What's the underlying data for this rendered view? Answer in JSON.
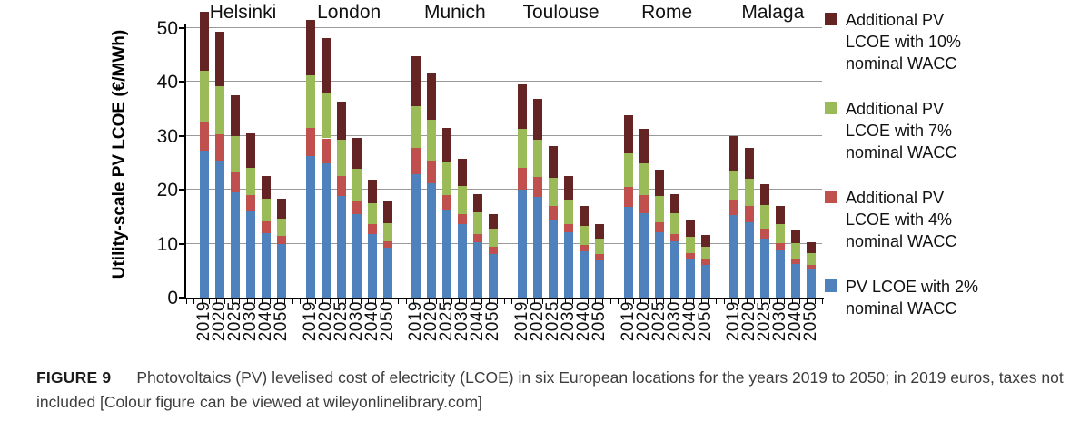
{
  "figure": {
    "label": "FIGURE 9",
    "caption": "Photovoltaics (PV) levelised cost of electricity (LCOE) in six European locations for the years 2019 to 2050; in 2019 euros, taxes not included [Colour figure can be viewed at wileyonlinelibrary.com]"
  },
  "chart_data": {
    "type": "bar",
    "stacked": true,
    "title": "",
    "xlabel": "",
    "ylabel": "Utility-scale PV LCOE (€/MWh)",
    "ylim": [
      0,
      55
    ],
    "yticks": [
      0,
      10,
      20,
      30,
      40,
      50
    ],
    "grid": true,
    "legend_position": "right",
    "groups": [
      "Helsinki",
      "London",
      "Munich",
      "Toulouse",
      "Rome",
      "Malaga"
    ],
    "years": [
      "2019",
      "2020",
      "2025",
      "2030",
      "2040",
      "2050"
    ],
    "series": [
      {
        "name": "PV LCOE with 2% nominal WACC",
        "color": "#4F81BD",
        "values": [
          [
            27.2,
            25.3,
            19.5,
            16.0,
            12.0,
            9.9
          ],
          [
            26.2,
            24.8,
            18.9,
            15.5,
            11.8,
            9.2
          ],
          [
            22.8,
            21.2,
            16.3,
            13.7,
            10.3,
            8.1
          ],
          [
            20.0,
            18.6,
            14.3,
            12.1,
            8.6,
            6.9
          ],
          [
            16.8,
            15.7,
            12.1,
            10.4,
            7.3,
            6.0
          ],
          [
            15.3,
            14.0,
            11.0,
            8.8,
            6.3,
            5.2
          ]
        ]
      },
      {
        "name": "Additional PV LCOE with 4% nominal WACC",
        "color": "#C0504D",
        "values": [
          [
            5.3,
            4.9,
            3.7,
            3.0,
            2.1,
            1.5
          ],
          [
            5.2,
            4.7,
            3.6,
            2.5,
            1.9,
            1.3
          ],
          [
            4.9,
            4.2,
            2.7,
            1.8,
            1.4,
            1.3
          ],
          [
            4.0,
            3.8,
            2.7,
            1.6,
            1.2,
            1.1
          ],
          [
            3.7,
            3.3,
            1.9,
            1.4,
            1.0,
            1.0
          ],
          [
            2.9,
            3.0,
            1.8,
            1.3,
            1.0,
            0.8
          ]
        ]
      },
      {
        "name": "Additional PV LCOE with 7% nominal WACC",
        "color": "#9BBB59",
        "values": [
          [
            9.5,
            9.0,
            6.8,
            5.0,
            4.2,
            3.2
          ],
          [
            9.7,
            8.5,
            6.7,
            5.8,
            3.8,
            3.3
          ],
          [
            7.8,
            7.6,
            6.2,
            5.2,
            4.1,
            3.4
          ],
          [
            7.3,
            6.9,
            5.2,
            4.5,
            3.4,
            3.0
          ],
          [
            6.3,
            5.8,
            4.9,
            3.9,
            3.0,
            2.4
          ],
          [
            5.3,
            5.0,
            4.3,
            3.6,
            2.8,
            2.2
          ]
        ]
      },
      {
        "name": "Additional PV LCOE with 10% nominal WACC",
        "color": "#632423",
        "values": [
          [
            11.0,
            10.1,
            7.5,
            6.5,
            4.3,
            3.8
          ],
          [
            10.4,
            10.0,
            7.1,
            5.7,
            4.4,
            4.0
          ],
          [
            9.2,
            8.7,
            6.3,
            5.1,
            3.4,
            2.6
          ],
          [
            8.2,
            7.5,
            5.8,
            4.3,
            3.8,
            2.7
          ],
          [
            7.0,
            6.5,
            4.8,
            3.5,
            3.0,
            2.2
          ],
          [
            6.4,
            5.8,
            3.9,
            3.3,
            2.4,
            2.0
          ]
        ]
      }
    ],
    "legend": [
      {
        "color": "#632423",
        "lines": [
          "Additional PV",
          "LCOE with 10%",
          "nominal WACC"
        ]
      },
      {
        "color": "#9BBB59",
        "lines": [
          "Additional PV",
          "LCOE with 7%",
          "nominal WACC"
        ]
      },
      {
        "color": "#C0504D",
        "lines": [
          "Additional PV",
          "LCOE with 4%",
          "nominal WACC"
        ]
      },
      {
        "color": "#4F81BD",
        "lines": [
          "PV LCOE with 2%",
          "nominal WACC"
        ]
      }
    ]
  }
}
